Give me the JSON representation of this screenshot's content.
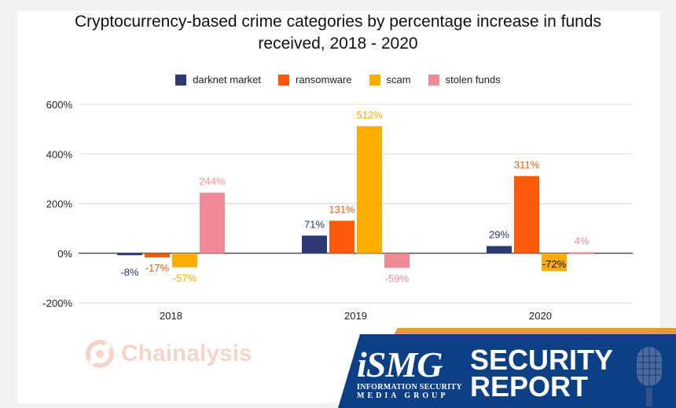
{
  "title_line1": "Cryptocurrency-based crime categories by percentage increase in funds",
  "title_line2": "received, 2018 - 2020",
  "chart_data": {
    "type": "bar",
    "title": "Cryptocurrency-based crime categories by percentage increase in funds received, 2018 - 2020",
    "categories": [
      "2018",
      "2019",
      "2020"
    ],
    "series": [
      {
        "name": "darknet market",
        "color": "#2b3a72",
        "values": [
          -8,
          71,
          29
        ],
        "labels": [
          "-8%",
          "71%",
          "29%"
        ]
      },
      {
        "name": "ransomware",
        "color": "#ff5a0a",
        "values": [
          -17,
          131,
          311
        ],
        "labels": [
          "-17%",
          "131%",
          "311%"
        ]
      },
      {
        "name": "scam",
        "color": "#ffad00",
        "values": [
          -57,
          512,
          -72
        ],
        "labels": [
          "-57%",
          "512%",
          "-72%"
        ]
      },
      {
        "name": "stolen funds",
        "color": "#f08c98",
        "values": [
          244,
          -59,
          4
        ],
        "labels": [
          "244%",
          "-59%",
          "4%"
        ]
      }
    ],
    "y_ticks": [
      "600%",
      "400%",
      "200%",
      "0%",
      "-200%"
    ],
    "ylim": [
      -200,
      600
    ],
    "grid": true,
    "legend_position": "top"
  },
  "watermark": "Chainalysis",
  "brand": {
    "logo": "iSMG",
    "sub_line1": "INFORMATION SECURITY",
    "sub_line2": "MEDIA GROUP",
    "report_line1": "SECURITY",
    "report_line2": "REPORT"
  }
}
